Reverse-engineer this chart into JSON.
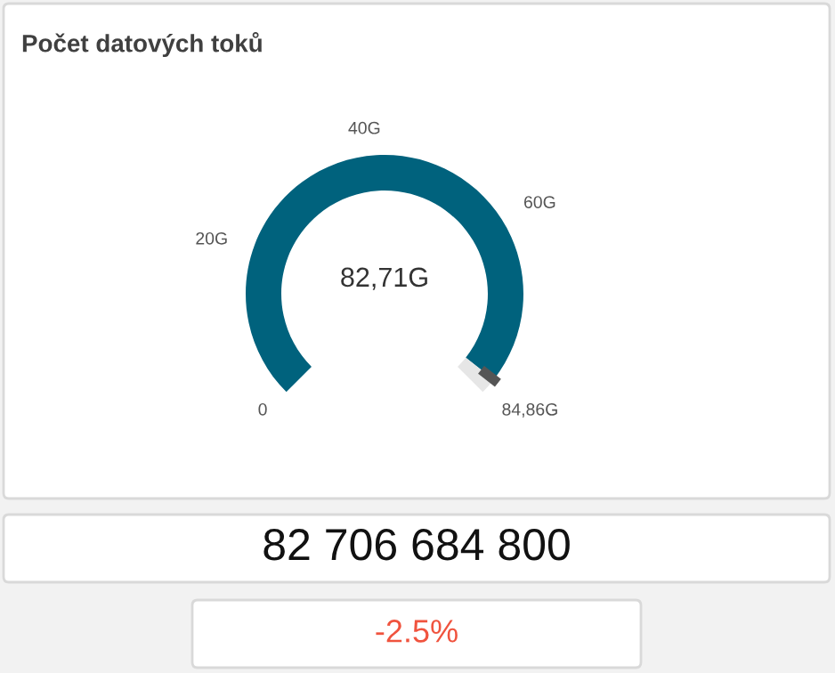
{
  "chart_data": {
    "type": "donut",
    "title": "Počet datových toků",
    "categories": [
      null,
      null
    ],
    "values": [
      82.71,
      2.15
    ],
    "colors": [
      "#00627d",
      "#e6e6e6"
    ],
    "value_labels": [
      "82,71G",
      null
    ],
    "annotations": [
      "0",
      "20G",
      "40G",
      "60G",
      "84,86G",
      "82 706 684 800",
      "-2.5%"
    ]
  }
}
